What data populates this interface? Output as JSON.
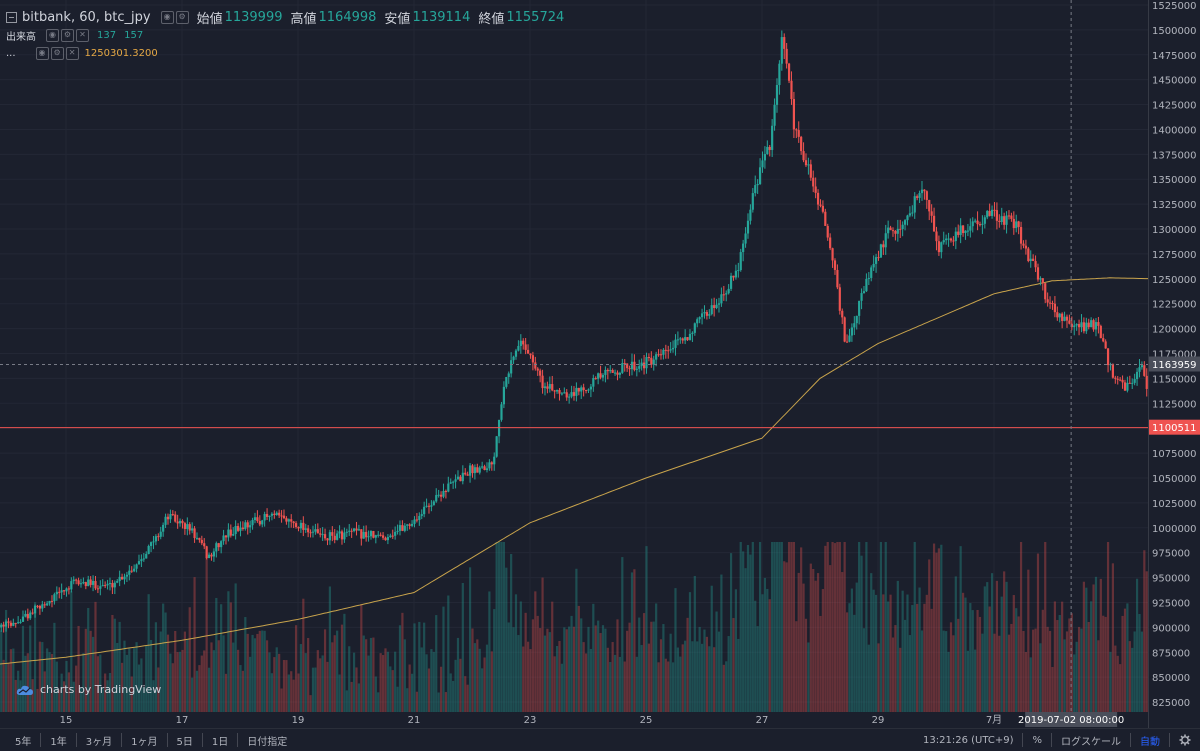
{
  "legend": {
    "symbol": "bitbank, 60, btc_jpy",
    "open_label": "始値",
    "open_value": "1139999",
    "high_label": "高値",
    "high_value": "1164998",
    "low_label": "安値",
    "low_value": "1139114",
    "close_label": "終値",
    "close_value": "1155724",
    "volume_label": "出来高",
    "volume_value_1": "137",
    "volume_value_2": "157",
    "ma_label": "...",
    "ma_value": "1250301.3200"
  },
  "watermark": "charts by TradingView",
  "price_labels": {
    "crosshair": "1163959",
    "last": "1100511",
    "crosshair_time": "2019-07-02 08:00:00"
  },
  "colors": {
    "background": "#1b1f2c",
    "up": "#26a69a",
    "down": "#ef5350",
    "ma": "#c9a44c",
    "grid": "#232735",
    "axis_text": "#b2b5be"
  },
  "bottom_bar": {
    "ranges": [
      "5年",
      "1年",
      "3ヶ月",
      "1ヶ月",
      "5日",
      "1日",
      "日付指定"
    ],
    "time": "13:21:26 (UTC+9)",
    "percent": "%",
    "log_scale": "ログスケール",
    "auto": "自動",
    "settings_icon": "gear-icon"
  },
  "chart_data": {
    "type": "candlestick",
    "symbol": "bitbank, 60, btc_jpy",
    "y_axis": {
      "range": [
        815000,
        1530000
      ],
      "ticks": [
        825000,
        850000,
        875000,
        900000,
        925000,
        950000,
        975000,
        1000000,
        1025000,
        1050000,
        1075000,
        1100000,
        1125000,
        1150000,
        1175000,
        1200000,
        1225000,
        1250000,
        1275000,
        1300000,
        1325000,
        1350000,
        1375000,
        1400000,
        1425000,
        1450000,
        1475000,
        1500000,
        1525000
      ]
    },
    "x_axis": {
      "ticks": [
        "15",
        "17",
        "19",
        "21",
        "23",
        "25",
        "27",
        "29",
        "7月"
      ],
      "tick_days": [
        15,
        17,
        19,
        21,
        23,
        25,
        27,
        29,
        31
      ]
    },
    "price_path": [
      {
        "day": 13.0,
        "price": 885000
      },
      {
        "day": 13.6,
        "price": 895000
      },
      {
        "day": 14.2,
        "price": 905000
      },
      {
        "day": 14.7,
        "price": 925000
      },
      {
        "day": 15.2,
        "price": 945000
      },
      {
        "day": 15.8,
        "price": 942000
      },
      {
        "day": 16.2,
        "price": 960000
      },
      {
        "day": 16.6,
        "price": 990000
      },
      {
        "day": 16.8,
        "price": 1012000
      },
      {
        "day": 17.2,
        "price": 998000
      },
      {
        "day": 17.5,
        "price": 970000
      },
      {
        "day": 17.8,
        "price": 993000
      },
      {
        "day": 18.2,
        "price": 1005000
      },
      {
        "day": 18.6,
        "price": 1012000
      },
      {
        "day": 19.0,
        "price": 1005000
      },
      {
        "day": 19.5,
        "price": 990000
      },
      {
        "day": 20.0,
        "price": 995000
      },
      {
        "day": 20.5,
        "price": 990000
      },
      {
        "day": 21.0,
        "price": 1005000
      },
      {
        "day": 21.5,
        "price": 1035000
      },
      {
        "day": 22.0,
        "price": 1058000
      },
      {
        "day": 22.4,
        "price": 1065000
      },
      {
        "day": 22.6,
        "price": 1150000
      },
      {
        "day": 22.9,
        "price": 1190000
      },
      {
        "day": 23.3,
        "price": 1140000
      },
      {
        "day": 23.8,
        "price": 1135000
      },
      {
        "day": 24.2,
        "price": 1150000
      },
      {
        "day": 24.6,
        "price": 1160000
      },
      {
        "day": 25.2,
        "price": 1168000
      },
      {
        "day": 25.7,
        "price": 1190000
      },
      {
        "day": 26.2,
        "price": 1222000
      },
      {
        "day": 26.6,
        "price": 1255000
      },
      {
        "day": 26.9,
        "price": 1340000
      },
      {
        "day": 27.2,
        "price": 1390000
      },
      {
        "day": 27.4,
        "price": 1495000
      },
      {
        "day": 27.6,
        "price": 1400000
      },
      {
        "day": 27.9,
        "price": 1350000
      },
      {
        "day": 28.2,
        "price": 1290000
      },
      {
        "day": 28.5,
        "price": 1180000
      },
      {
        "day": 28.8,
        "price": 1240000
      },
      {
        "day": 29.2,
        "price": 1295000
      },
      {
        "day": 29.5,
        "price": 1305000
      },
      {
        "day": 29.8,
        "price": 1345000
      },
      {
        "day": 30.1,
        "price": 1280000
      },
      {
        "day": 30.5,
        "price": 1300000
      },
      {
        "day": 31.0,
        "price": 1315000
      },
      {
        "day": 31.4,
        "price": 1305000
      },
      {
        "day": 31.7,
        "price": 1265000
      },
      {
        "day": 32.0,
        "price": 1225000
      },
      {
        "day": 32.4,
        "price": 1200000
      },
      {
        "day": 32.8,
        "price": 1205000
      },
      {
        "day": 33.1,
        "price": 1150000
      },
      {
        "day": 33.3,
        "price": 1140000
      },
      {
        "day": 33.6,
        "price": 1160000
      },
      {
        "day": 33.8,
        "price": 1100511
      }
    ],
    "moving_average": [
      {
        "day": 13.0,
        "value": 858000
      },
      {
        "day": 15.0,
        "value": 870000
      },
      {
        "day": 17.0,
        "value": 887000
      },
      {
        "day": 19.0,
        "value": 908000
      },
      {
        "day": 21.0,
        "value": 935000
      },
      {
        "day": 23.0,
        "value": 1005000
      },
      {
        "day": 25.0,
        "value": 1050000
      },
      {
        "day": 27.0,
        "value": 1090000
      },
      {
        "day": 28.0,
        "value": 1150000
      },
      {
        "day": 29.0,
        "value": 1185000
      },
      {
        "day": 30.0,
        "value": 1210000
      },
      {
        "day": 31.0,
        "value": 1235000
      },
      {
        "day": 32.0,
        "value": 1248000
      },
      {
        "day": 33.0,
        "value": 1251000
      },
      {
        "day": 33.8,
        "value": 1250000
      }
    ],
    "horizontal_lines": {
      "crosshair_price": 1163959,
      "last_price": 1100511
    },
    "crosshair_day": 32.33,
    "last": {
      "open": 1139999,
      "high": 1164998,
      "low": 1139114,
      "close": 1155724,
      "volume": [
        137,
        157
      ],
      "ma": 1250301.32
    }
  }
}
